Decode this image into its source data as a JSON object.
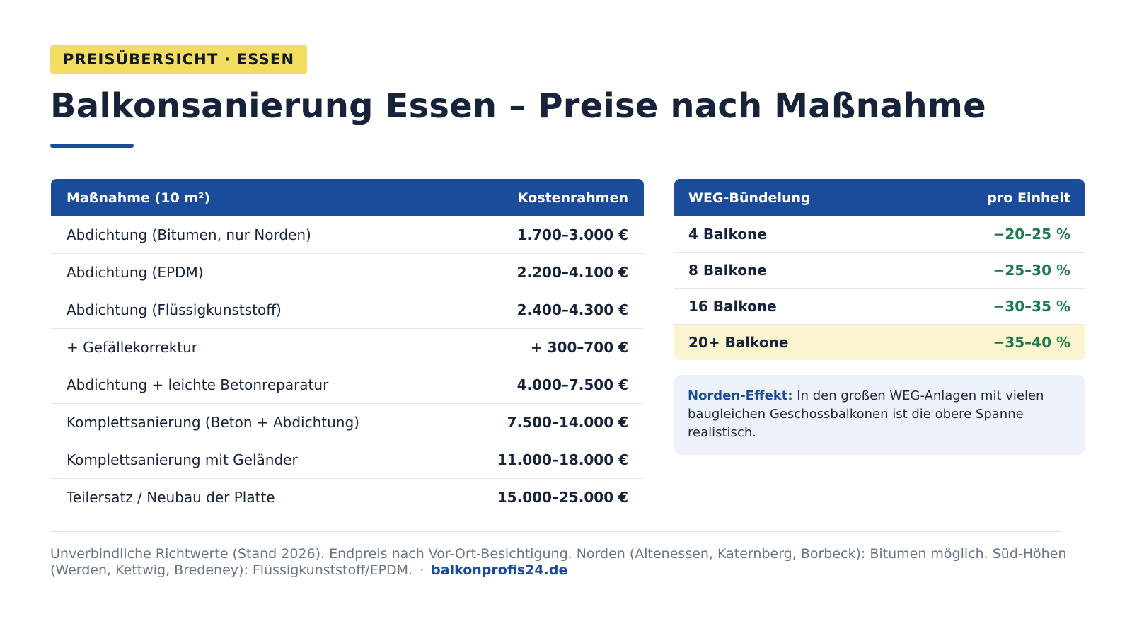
{
  "badge": "PREISÜBERSICHT · ESSEN",
  "title": "Balkonsanierung Essen – Preise nach Maßnahme",
  "prices": {
    "header": {
      "col1": "Maßnahme (10 m²)",
      "col2": "Kostenrahmen"
    },
    "rows": [
      {
        "label": "Abdichtung (Bitumen, nur Norden)",
        "value": "1.700–3.000 €"
      },
      {
        "label": "Abdichtung (EPDM)",
        "value": "2.200–4.100 €"
      },
      {
        "label": "Abdichtung (Flüssigkunststoff)",
        "value": "2.400–4.300 €"
      },
      {
        "label": "+ Gefällekorrektur",
        "value": "+ 300–700 €"
      },
      {
        "label": "Abdichtung + leichte Betonreparatur",
        "value": "4.000–7.500 €"
      },
      {
        "label": "Komplettsanierung (Beton + Abdichtung)",
        "value": "7.500–14.000 €"
      },
      {
        "label": "Komplettsanierung mit Geländer",
        "value": "11.000–18.000 €"
      },
      {
        "label": "Teilersatz / Neubau der Platte",
        "value": "15.000–25.000 €"
      }
    ]
  },
  "bundling": {
    "header": {
      "col1": "WEG-Bündelung",
      "col2": "pro Einheit"
    },
    "rows": [
      {
        "label": "4 Balkone",
        "value": "−20–25 %"
      },
      {
        "label": "8 Balkone",
        "value": "−25–30 %"
      },
      {
        "label": "16 Balkone",
        "value": "−30–35 %"
      },
      {
        "label": "20+ Balkone",
        "value": "−35–40 %"
      }
    ]
  },
  "note": {
    "lead": "Norden-Effekt:",
    "text": " In den großen WEG-Anlagen mit vielen baugleichen Geschossbalkonen ist die obere Spanne realistisch."
  },
  "footer": {
    "text": "Unverbindliche Richtwerte (Stand 2026). Endpreis nach Vor-Ort-Besichtigung. Norden (Altenessen, Katernberg, Borbeck): Bitumen möglich. Süd-Höhen (Werden, Kettwig, Bredeney): Flüssigkunststoff/EPDM.",
    "separator": "·",
    "link": "balkonprofis24.de"
  },
  "colors": {
    "brand_blue": "#1b4c9c",
    "badge_yellow": "#f2dd60",
    "discount_green": "#1e7a4e",
    "highlight_row": "#fcf4cf",
    "note_bg": "#edf1fa"
  }
}
